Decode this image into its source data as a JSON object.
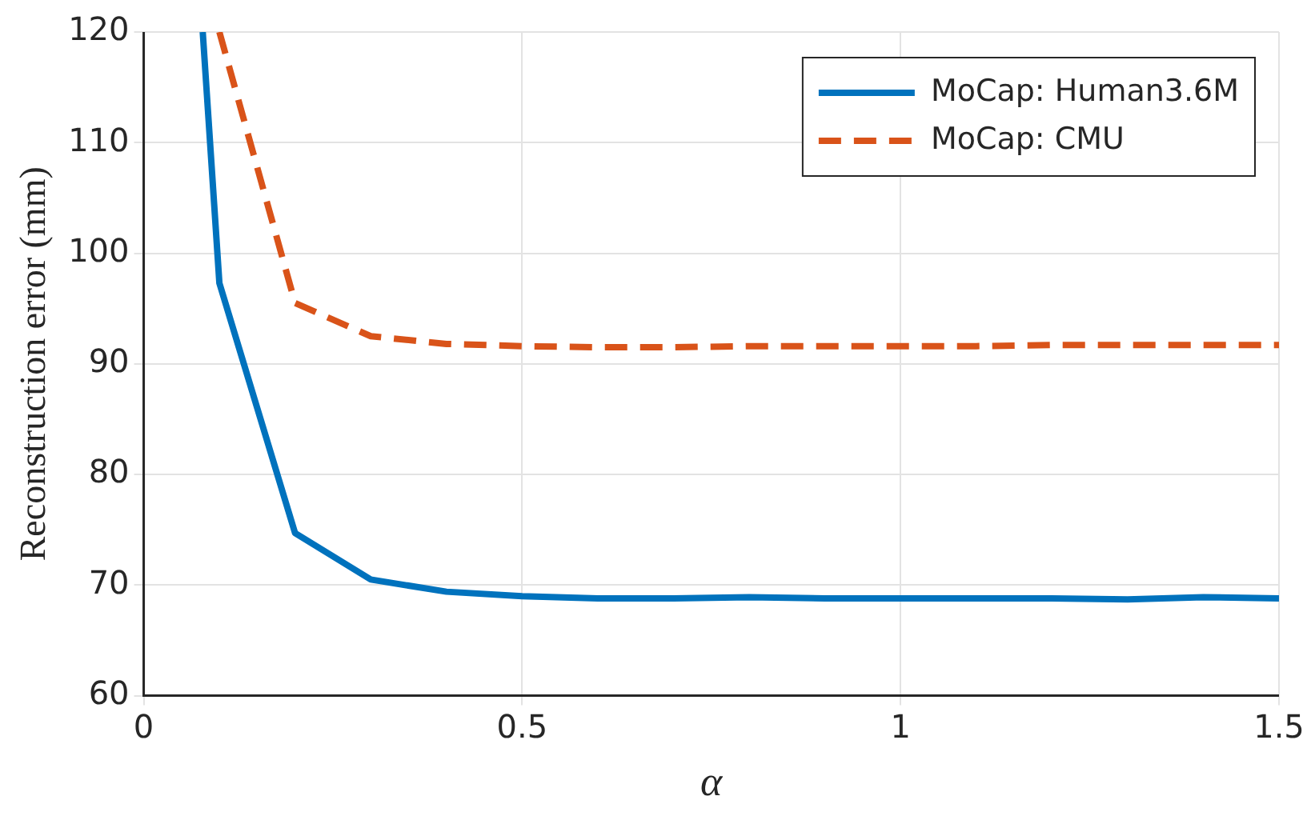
{
  "chart_data": {
    "type": "line",
    "xlabel": "α",
    "ylabel": "Reconstruction error (mm)",
    "xlim": [
      0,
      1.5
    ],
    "xticks": [
      0,
      0.5,
      1,
      1.5
    ],
    "ylim": [
      60,
      120
    ],
    "yticks": [
      60,
      70,
      80,
      90,
      100,
      110,
      120
    ],
    "grid": true,
    "legend": "top right",
    "marker": "none",
    "series": [
      {
        "name": "MoCap: Human3.6M",
        "color": "#0072bd",
        "line_style": "solid",
        "x": [
          0.078,
          0.1,
          0.2,
          0.3,
          0.4,
          0.5,
          0.6,
          0.7,
          0.8,
          0.9,
          1.0,
          1.1,
          1.2,
          1.3,
          1.4,
          1.5
        ],
        "values": [
          120,
          97.3,
          74.7,
          70.5,
          69.4,
          69.0,
          68.8,
          68.8,
          68.9,
          68.8,
          68.8,
          68.8,
          68.8,
          68.7,
          68.9,
          68.8
        ]
      },
      {
        "name": "MoCap: CMU",
        "color": "#d95319",
        "line_style": "dashed",
        "x": [
          0.1,
          0.2,
          0.3,
          0.4,
          0.5,
          0.6,
          0.7,
          0.8,
          0.9,
          1.0,
          1.1,
          1.2,
          1.3,
          1.4,
          1.5
        ],
        "values": [
          120,
          95.5,
          92.5,
          91.8,
          91.6,
          91.5,
          91.5,
          91.6,
          91.6,
          91.6,
          91.6,
          91.7,
          91.7,
          91.7,
          91.7
        ]
      }
    ]
  }
}
